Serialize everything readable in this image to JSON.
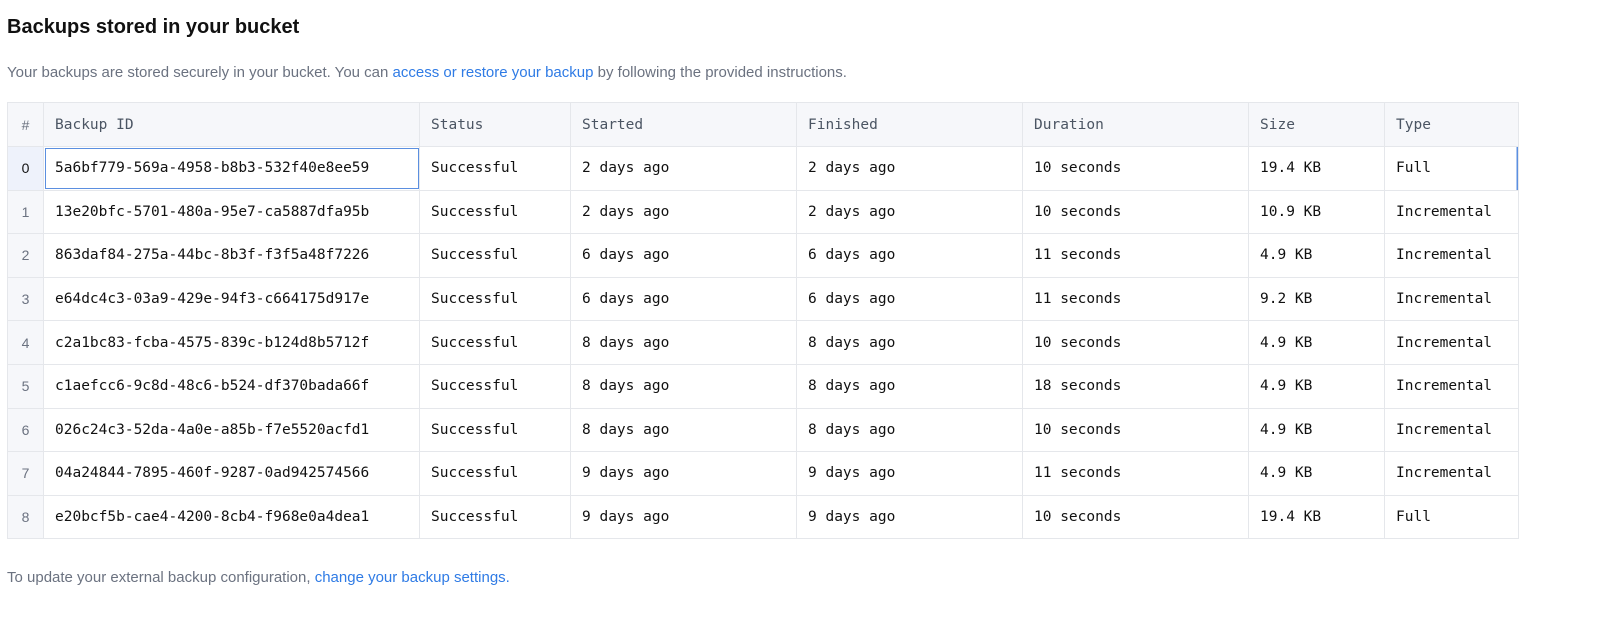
{
  "title": "Backups stored in your bucket",
  "description": {
    "before": "Your backups are stored securely in your bucket. You can ",
    "link": "access or restore your backup",
    "after": "  by following the provided instructions."
  },
  "table": {
    "headers": [
      "#",
      "Backup ID",
      "Status",
      "Started",
      "Finished",
      "Duration",
      "Size",
      "Type"
    ],
    "rows": [
      [
        "0",
        "5a6bf779-569a-4958-b8b3-532f40e8ee59",
        "Successful",
        "2 days ago",
        "2 days ago",
        "10 seconds",
        "19.4 KB",
        "Full"
      ],
      [
        "1",
        "13e20bfc-5701-480a-95e7-ca5887dfa95b",
        "Successful",
        "2 days ago",
        "2 days ago",
        "10 seconds",
        "10.9 KB",
        "Incremental"
      ],
      [
        "2",
        "863daf84-275a-44bc-8b3f-f3f5a48f7226",
        "Successful",
        "6 days ago",
        "6 days ago",
        "11 seconds",
        "4.9 KB",
        "Incremental"
      ],
      [
        "3",
        "e64dc4c3-03a9-429e-94f3-c664175d917e",
        "Successful",
        "6 days ago",
        "6 days ago",
        "11 seconds",
        "9.2 KB",
        "Incremental"
      ],
      [
        "4",
        "c2a1bc83-fcba-4575-839c-b124d8b5712f",
        "Successful",
        "8 days ago",
        "8 days ago",
        "10 seconds",
        "4.9 KB",
        "Incremental"
      ],
      [
        "5",
        "c1aefcc6-9c8d-48c6-b524-df370bada66f",
        "Successful",
        "8 days ago",
        "8 days ago",
        "18 seconds",
        "4.9 KB",
        "Incremental"
      ],
      [
        "6",
        "026c24c3-52da-4a0e-a85b-f7e5520acfd1",
        "Successful",
        "8 days ago",
        "8 days ago",
        "10 seconds",
        "4.9 KB",
        "Incremental"
      ],
      [
        "7",
        "04a24844-7895-460f-9287-0ad942574566",
        "Successful",
        "9 days ago",
        "9 days ago",
        "11 seconds",
        "4.9 KB",
        "Incremental"
      ],
      [
        "8",
        "e20bcf5b-cae4-4200-8cb4-f968e0a4dea1",
        "Successful",
        "9 days ago",
        "9 days ago",
        "10 seconds",
        "19.4 KB",
        "Full"
      ]
    ]
  },
  "footer": {
    "before": "To update your external backup configuration, ",
    "link": "change your backup settings."
  },
  "colors": {
    "link": "#2f7be5",
    "selection": "#5b8fe0"
  }
}
